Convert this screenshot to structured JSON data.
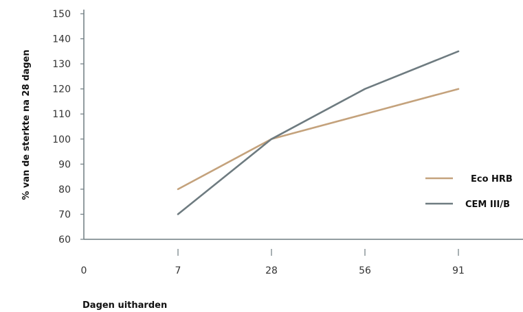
{
  "chart_data": {
    "type": "line",
    "categories": [
      "0",
      "7",
      "28",
      "56",
      "91"
    ],
    "y_ticks": [
      "150",
      "140",
      "130",
      "120",
      "110",
      "100",
      "90",
      "80",
      "70",
      "60"
    ],
    "ylim": [
      60,
      150
    ],
    "ylabel": "% van de sterkte na 28 dagen",
    "xlabel": "Dagen uitharden",
    "grid": false,
    "legend_position": "right",
    "series": [
      {
        "name": "Eco HRB",
        "color": "#c4a27c",
        "values": [
          null,
          80,
          100,
          110,
          120
        ]
      },
      {
        "name": "CEM III/B",
        "color": "#6e7b80",
        "values": [
          null,
          70,
          100,
          120,
          135
        ]
      }
    ]
  }
}
